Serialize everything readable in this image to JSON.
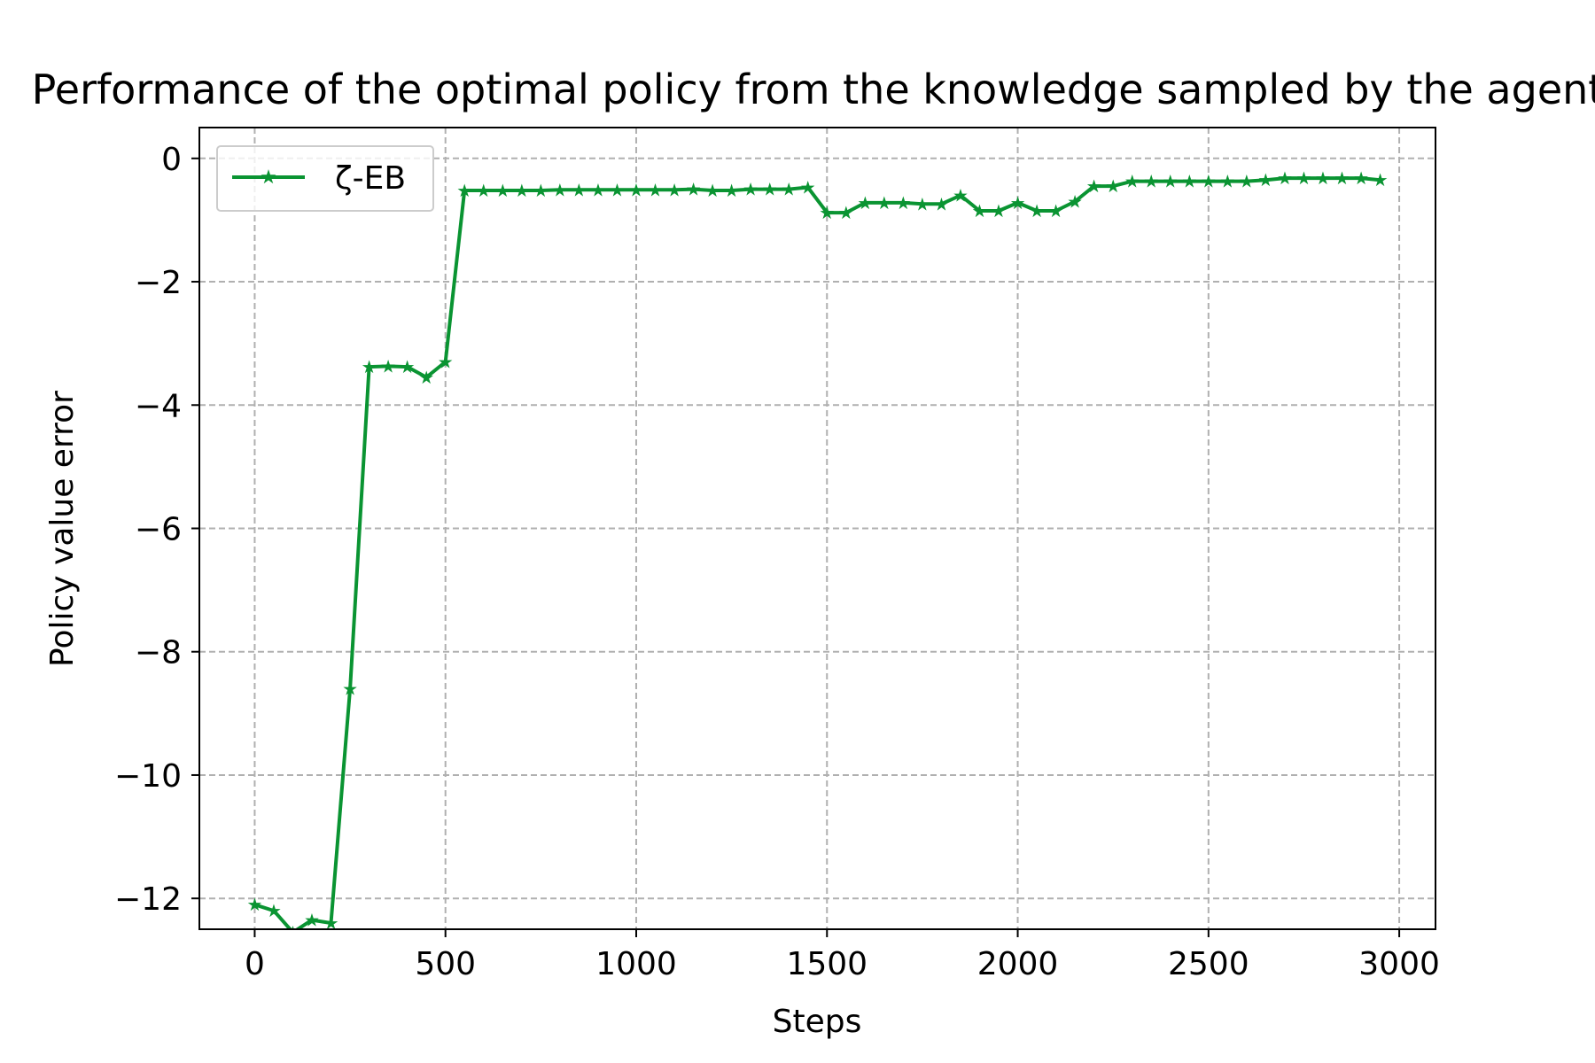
{
  "chart_data": {
    "type": "line",
    "title": "Performance of the optimal policy from the knowledge sampled by the agent",
    "xlabel": "Steps",
    "ylabel": "Policy value error",
    "xlim": [
      -145,
      3095
    ],
    "ylim": [
      -12.5,
      0.5
    ],
    "xticks": [
      0,
      500,
      1000,
      1500,
      2000,
      2500,
      3000
    ],
    "yticks": [
      0,
      -2,
      -4,
      -6,
      -8,
      -10,
      -12
    ],
    "xtick_labels": [
      "0",
      "500",
      "1000",
      "1500",
      "2000",
      "2500",
      "3000"
    ],
    "ytick_labels": [
      "0",
      "−2",
      "−4",
      "−6",
      "−8",
      "−10",
      "−12"
    ],
    "grid": true,
    "legend_position": "upper left",
    "series": [
      {
        "name": "ζ-EB",
        "color": "#0a9432",
        "marker": "star",
        "x": [
          0,
          50,
          100,
          150,
          200,
          250,
          300,
          350,
          400,
          450,
          500,
          550,
          600,
          650,
          700,
          750,
          800,
          850,
          900,
          950,
          1000,
          1050,
          1100,
          1150,
          1200,
          1250,
          1300,
          1350,
          1400,
          1450,
          1500,
          1550,
          1600,
          1650,
          1700,
          1750,
          1800,
          1850,
          1900,
          1950,
          2000,
          2050,
          2100,
          2150,
          2200,
          2250,
          2300,
          2350,
          2400,
          2450,
          2500,
          2550,
          2600,
          2650,
          2700,
          2750,
          2800,
          2850,
          2900,
          2950
        ],
        "y": [
          -12.1,
          -12.2,
          -12.55,
          -12.35,
          -12.4,
          -8.6,
          -3.38,
          -3.37,
          -3.38,
          -3.55,
          -3.3,
          -0.52,
          -0.52,
          -0.52,
          -0.52,
          -0.52,
          -0.51,
          -0.51,
          -0.51,
          -0.51,
          -0.51,
          -0.51,
          -0.51,
          -0.5,
          -0.52,
          -0.52,
          -0.5,
          -0.5,
          -0.5,
          -0.47,
          -0.88,
          -0.88,
          -0.72,
          -0.72,
          -0.72,
          -0.74,
          -0.74,
          -0.6,
          -0.85,
          -0.85,
          -0.72,
          -0.85,
          -0.85,
          -0.7,
          -0.45,
          -0.45,
          -0.37,
          -0.37,
          -0.37,
          -0.37,
          -0.37,
          -0.37,
          -0.37,
          -0.35,
          -0.32,
          -0.32,
          -0.32,
          -0.32,
          -0.32,
          -0.35
        ]
      }
    ]
  }
}
